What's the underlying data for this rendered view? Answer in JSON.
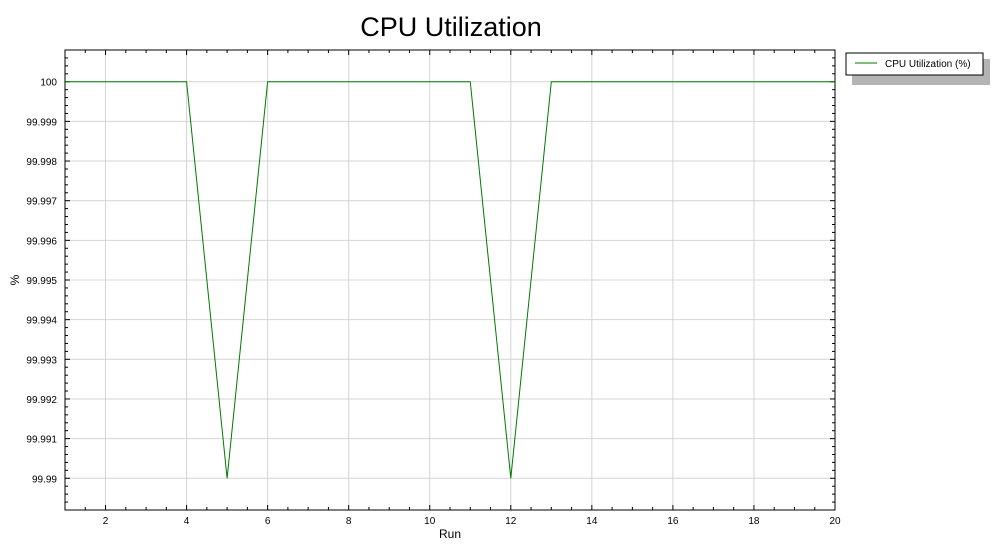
{
  "chart_data": {
    "type": "line",
    "title": "CPU Utilization",
    "xlabel": "Run",
    "ylabel": "%",
    "xlim": [
      1,
      20
    ],
    "ylim": [
      99.9892,
      100.0008
    ],
    "x_ticks": [
      2,
      4,
      6,
      8,
      10,
      12,
      14,
      16,
      18,
      20
    ],
    "y_ticks": [
      99.99,
      99.991,
      99.992,
      99.993,
      99.994,
      99.995,
      99.996,
      99.997,
      99.998,
      99.999,
      100
    ],
    "y_tick_labels": [
      "99.99",
      "99.991",
      "99.992",
      "99.993",
      "99.994",
      "99.995",
      "99.996",
      "99.997",
      "99.998",
      "99.999",
      "100"
    ],
    "grid": true,
    "legend_position": "top-right outside",
    "series": [
      {
        "name": "CPU Utilization (%)",
        "color": "#007a00",
        "x": [
          1,
          2,
          3,
          4,
          5,
          6,
          7,
          8,
          9,
          10,
          11,
          12,
          13,
          14,
          15,
          16,
          17,
          18,
          19,
          20
        ],
        "values": [
          100,
          100,
          100,
          100,
          99.99,
          100,
          100,
          100,
          100,
          100,
          100,
          99.99,
          100,
          100,
          100,
          100,
          100,
          100,
          100,
          100
        ]
      }
    ]
  }
}
